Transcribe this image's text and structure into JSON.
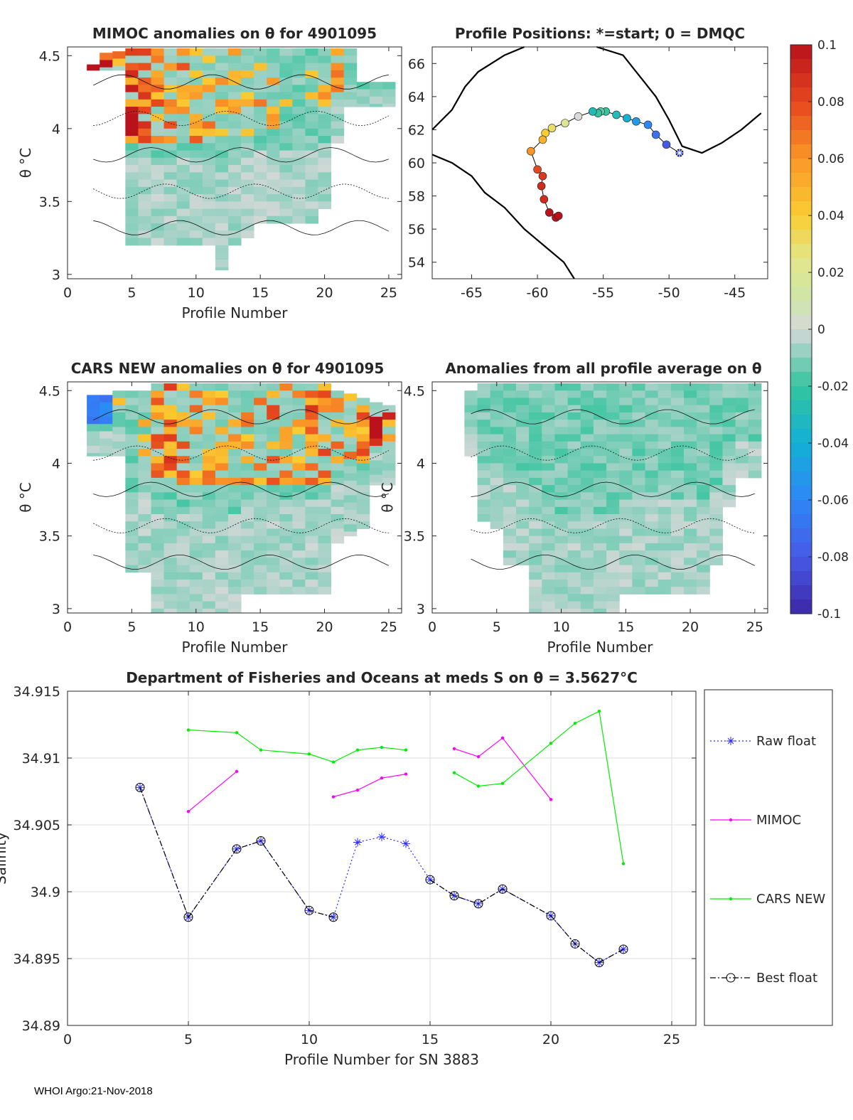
{
  "figure": {
    "footer": "WHOI Argo:21-Nov-2018",
    "theta_label": "θ °C",
    "colors": {
      "text": "#262626",
      "grid": "#dedede",
      "axis": "#262626",
      "heat_bg": "#d9d9d9"
    }
  },
  "chart_data": [
    {
      "id": "mimoc",
      "type": "heatmap",
      "title": "MIMOC anomalies on θ  for 4901095",
      "xlabel": "Profile Number",
      "ylabel": "θ °C",
      "xlim": [
        0,
        26
      ],
      "ylim": [
        2.97,
        4.56
      ],
      "xticks": [
        0,
        5,
        10,
        15,
        20,
        25
      ],
      "yticks": [
        3,
        3.5,
        4,
        4.5
      ],
      "ytick_labels": [
        "3",
        "3.5",
        "4",
        "4.5"
      ],
      "columns": [
        {
          "x": 2,
          "ymin": 4.4,
          "ymax": 4.44,
          "warm": 1.0
        },
        {
          "x": 3,
          "ymin": 4.4,
          "ymax": 4.52,
          "warm": 1.0
        },
        {
          "x": 4,
          "ymin": 4.4,
          "ymax": 4.53,
          "warm": 1.0
        },
        {
          "x": 5,
          "ymin": 3.2,
          "ymax": 4.55,
          "warm": 0.9
        },
        {
          "x": 6,
          "ymin": 3.2,
          "ymax": 4.55,
          "warm": 0.7
        },
        {
          "x": 7,
          "ymin": 3.2,
          "ymax": 4.55,
          "warm": 0.6
        },
        {
          "x": 8,
          "ymin": 3.2,
          "ymax": 4.55,
          "warm": 0.5
        },
        {
          "x": 9,
          "ymin": 3.2,
          "ymax": 4.55,
          "warm": 0.6
        },
        {
          "x": 10,
          "ymin": 3.2,
          "ymax": 4.55,
          "warm": 0.5
        },
        {
          "x": 11,
          "ymin": 3.2,
          "ymax": 4.55,
          "warm": 0.5
        },
        {
          "x": 12,
          "ymin": 3.03,
          "ymax": 4.55,
          "warm": 0.3
        },
        {
          "x": 13,
          "ymin": 3.2,
          "ymax": 4.55,
          "warm": 0.3
        },
        {
          "x": 14,
          "ymin": 3.25,
          "ymax": 4.55,
          "warm": 0.5
        },
        {
          "x": 15,
          "ymin": 3.35,
          "ymax": 4.55,
          "warm": 0.5
        },
        {
          "x": 16,
          "ymin": 3.35,
          "ymax": 4.55,
          "warm": 0.3
        },
        {
          "x": 17,
          "ymin": 3.35,
          "ymax": 4.55,
          "warm": 0.1
        },
        {
          "x": 18,
          "ymin": 3.35,
          "ymax": 4.55,
          "warm": 0.1
        },
        {
          "x": 19,
          "ymin": 3.35,
          "ymax": 4.55,
          "warm": 0.1
        },
        {
          "x": 20,
          "ymin": 3.45,
          "ymax": 4.55,
          "warm": 0.3
        },
        {
          "x": 21,
          "ymin": 3.9,
          "ymax": 4.55,
          "warm": 0.4
        },
        {
          "x": 22,
          "ymin": 4.15,
          "ymax": 4.55,
          "warm": 0.1
        },
        {
          "x": 23,
          "ymin": 4.15,
          "ymax": 4.32,
          "warm": 0.0
        },
        {
          "x": 24,
          "ymin": 4.15,
          "ymax": 4.32,
          "warm": 0.0
        },
        {
          "x": 25,
          "ymin": 4.15,
          "ymax": 4.32,
          "warm": 0.0
        }
      ]
    },
    {
      "id": "positions",
      "type": "scatter",
      "title": "Profile Positions: *=start; 0 = DMQC",
      "xlim": [
        -68,
        -42.5
      ],
      "ylim": [
        53,
        67
      ],
      "xticks": [
        -65,
        -60,
        -55,
        -50,
        -45
      ],
      "yticks": [
        54,
        56,
        58,
        60,
        62,
        64,
        66
      ],
      "lon": [
        -49.2,
        -50.2,
        -51.0,
        -51.6,
        -52.5,
        -53.2,
        -54.0,
        -54.8,
        -55.2,
        -55.4,
        -55.8,
        -56.9,
        -57.9,
        -58.9,
        -59.4,
        -59.6,
        -60.5,
        -60.0,
        -59.6,
        -59.7,
        -59.5,
        -59.1,
        -58.6,
        -58.4
      ],
      "lat": [
        60.6,
        61.1,
        61.7,
        62.3,
        62.5,
        62.7,
        62.9,
        63.1,
        63.1,
        63.0,
        63.1,
        62.8,
        62.4,
        62.1,
        61.8,
        61.4,
        60.7,
        59.6,
        59.2,
        58.6,
        57.8,
        57.0,
        56.7,
        56.8
      ],
      "anomaly_color": [
        -0.085,
        -0.08,
        -0.07,
        -0.06,
        -0.05,
        -0.04,
        -0.03,
        -0.02,
        -0.015,
        -0.02,
        -0.03,
        0.0,
        0.02,
        0.03,
        0.04,
        0.05,
        0.06,
        0.08,
        0.085,
        0.09,
        0.09,
        0.1,
        0.1,
        0.1
      ],
      "start_marker": "*"
    },
    {
      "id": "colorbar",
      "type": "colorbar",
      "ticks": [
        "0.1",
        "0.08",
        "0.06",
        "0.04",
        "0.02",
        "0",
        "-0.02",
        "-0.04",
        "-0.06",
        "-0.08",
        "-0.1"
      ],
      "range": [
        -0.1,
        0.1
      ]
    },
    {
      "id": "cars",
      "type": "heatmap",
      "title": "CARS NEW anomalies on θ for 4901095",
      "xlabel": "Profile Number",
      "ylabel": "θ °C",
      "xlim": [
        0,
        26
      ],
      "ylim": [
        2.97,
        4.56
      ],
      "xticks": [
        0,
        5,
        10,
        15,
        20,
        25
      ],
      "yticks": [
        3,
        3.5,
        4,
        4.5
      ],
      "ytick_labels": [
        "3",
        "3.5",
        "4",
        "4.5"
      ],
      "columns": [
        {
          "x": 2,
          "ymin": 4.05,
          "ymax": 4.47,
          "warm": 0.0
        },
        {
          "x": 3,
          "ymin": 4.05,
          "ymax": 4.47,
          "warm": 0.0
        },
        {
          "x": 4,
          "ymin": 4.05,
          "ymax": 4.5,
          "warm": 0.1
        },
        {
          "x": 5,
          "ymin": 3.25,
          "ymax": 4.5,
          "warm": 0.1
        },
        {
          "x": 6,
          "ymin": 3.25,
          "ymax": 4.5,
          "warm": 0.2
        },
        {
          "x": 7,
          "ymin": 2.97,
          "ymax": 4.55,
          "warm": 0.5
        },
        {
          "x": 8,
          "ymin": 2.97,
          "ymax": 4.55,
          "warm": 0.6
        },
        {
          "x": 9,
          "ymin": 2.97,
          "ymax": 4.55,
          "warm": 0.5
        },
        {
          "x": 10,
          "ymin": 2.97,
          "ymax": 4.55,
          "warm": 0.5
        },
        {
          "x": 11,
          "ymin": 2.97,
          "ymax": 4.55,
          "warm": 0.4
        },
        {
          "x": 12,
          "ymin": 2.97,
          "ymax": 4.55,
          "warm": 0.3
        },
        {
          "x": 13,
          "ymin": 2.97,
          "ymax": 4.55,
          "warm": 0.3
        },
        {
          "x": 14,
          "ymin": 3.1,
          "ymax": 4.55,
          "warm": 0.4
        },
        {
          "x": 15,
          "ymin": 3.1,
          "ymax": 4.55,
          "warm": 0.4
        },
        {
          "x": 16,
          "ymin": 3.1,
          "ymax": 4.55,
          "warm": 0.5
        },
        {
          "x": 17,
          "ymin": 3.1,
          "ymax": 4.55,
          "warm": 0.4
        },
        {
          "x": 18,
          "ymin": 3.1,
          "ymax": 4.55,
          "warm": 0.5
        },
        {
          "x": 19,
          "ymin": 3.1,
          "ymax": 4.55,
          "warm": 0.6
        },
        {
          "x": 20,
          "ymin": 3.1,
          "ymax": 4.55,
          "warm": 0.6
        },
        {
          "x": 21,
          "ymin": 3.45,
          "ymax": 4.5,
          "warm": 0.5
        },
        {
          "x": 22,
          "ymin": 3.5,
          "ymax": 4.48,
          "warm": 0.6
        },
        {
          "x": 23,
          "ymin": 3.55,
          "ymax": 4.45,
          "warm": 0.7
        },
        {
          "x": 24,
          "ymin": 3.85,
          "ymax": 4.42,
          "warm": 0.8
        },
        {
          "x": 25,
          "ymin": 3.85,
          "ymax": 4.4,
          "warm": 0.7
        }
      ]
    },
    {
      "id": "allavg",
      "type": "heatmap",
      "title": "Anomalies from all profile average on θ",
      "xlabel": "Profile Number",
      "ylabel": "θ °C",
      "xlim": [
        0,
        26
      ],
      "ylim": [
        2.97,
        4.56
      ],
      "xticks": [
        0,
        5,
        10,
        15,
        20,
        25
      ],
      "yticks": [
        3,
        3.5,
        4,
        4.5
      ],
      "ytick_labels": [
        "3",
        "3.5",
        "4",
        "4.5"
      ],
      "columns": [
        {
          "x": 3,
          "ymin": 4.05,
          "ymax": 4.5,
          "warm": 0.0
        },
        {
          "x": 4,
          "ymin": 3.6,
          "ymax": 4.55,
          "warm": 0.05
        },
        {
          "x": 5,
          "ymin": 3.55,
          "ymax": 4.55,
          "warm": 0.0
        },
        {
          "x": 6,
          "ymin": 3.3,
          "ymax": 4.55,
          "warm": 0.0
        },
        {
          "x": 7,
          "ymin": 3.3,
          "ymax": 4.55,
          "warm": 0.0
        },
        {
          "x": 8,
          "ymin": 2.97,
          "ymax": 4.55,
          "warm": 0.0
        },
        {
          "x": 9,
          "ymin": 2.97,
          "ymax": 4.55,
          "warm": 0.0
        },
        {
          "x": 10,
          "ymin": 2.97,
          "ymax": 4.55,
          "warm": 0.0
        },
        {
          "x": 11,
          "ymin": 2.97,
          "ymax": 4.55,
          "warm": 0.0
        },
        {
          "x": 12,
          "ymin": 2.97,
          "ymax": 4.55,
          "warm": 0.0
        },
        {
          "x": 13,
          "ymin": 2.97,
          "ymax": 4.55,
          "warm": 0.0
        },
        {
          "x": 14,
          "ymin": 2.97,
          "ymax": 4.55,
          "warm": 0.0
        },
        {
          "x": 15,
          "ymin": 3.1,
          "ymax": 4.55,
          "warm": 0.0
        },
        {
          "x": 16,
          "ymin": 3.1,
          "ymax": 4.55,
          "warm": 0.0
        },
        {
          "x": 17,
          "ymin": 3.1,
          "ymax": 4.55,
          "warm": 0.0
        },
        {
          "x": 18,
          "ymin": 3.1,
          "ymax": 4.55,
          "warm": 0.0
        },
        {
          "x": 19,
          "ymin": 3.1,
          "ymax": 4.55,
          "warm": 0.0
        },
        {
          "x": 20,
          "ymin": 3.1,
          "ymax": 4.55,
          "warm": 0.0
        },
        {
          "x": 21,
          "ymin": 3.1,
          "ymax": 4.55,
          "warm": 0.0
        },
        {
          "x": 22,
          "ymin": 3.3,
          "ymax": 4.55,
          "warm": 0.0
        },
        {
          "x": 23,
          "ymin": 3.7,
          "ymax": 4.55,
          "warm": 0.0
        },
        {
          "x": 24,
          "ymin": 3.9,
          "ymax": 4.55,
          "warm": 0.0
        },
        {
          "x": 25,
          "ymin": 3.9,
          "ymax": 4.55,
          "warm": 0.0
        }
      ]
    },
    {
      "id": "salinity",
      "type": "line",
      "title": "Department of Fisheries and Oceans at meds S on θ = 3.5627°C",
      "xlabel": "Profile Number for SN 3883",
      "ylabel": "Salinity",
      "xlim": [
        0,
        26
      ],
      "ylim": [
        34.89,
        34.915
      ],
      "xticks": [
        0,
        5,
        10,
        15,
        20,
        25
      ],
      "yticks": [
        34.89,
        34.895,
        34.9,
        34.905,
        34.91,
        34.915
      ],
      "ytick_labels": [
        "34.89",
        "34.895",
        "34.9",
        "34.905",
        "34.91",
        "34.915"
      ],
      "grid": true,
      "legend_position": "right",
      "series": [
        {
          "name": "Raw float",
          "color": "#2b2bff",
          "style": "dotted",
          "marker": "star",
          "segments": [
            [
              [
                3,
                34.9078
              ],
              [
                5,
                34.8981
              ],
              [
                7,
                34.9032
              ],
              [
                8,
                34.9038
              ],
              [
                10,
                34.8986
              ],
              [
                11,
                34.8981
              ],
              [
                12,
                34.9037
              ],
              [
                13,
                34.9041
              ],
              [
                14,
                34.9036
              ],
              [
                15,
                34.9009
              ],
              [
                16,
                34.8997
              ],
              [
                17,
                34.8991
              ],
              [
                18,
                34.9002
              ],
              [
                20,
                34.8982
              ],
              [
                21,
                34.8961
              ],
              [
                22,
                34.8947
              ],
              [
                23,
                34.8957
              ]
            ]
          ]
        },
        {
          "name": "MIMOC",
          "color": "#ff00ff",
          "style": "solid",
          "marker": "dot",
          "segments": [
            [
              [
                5,
                34.906
              ],
              [
                7,
                34.909
              ]
            ],
            [
              [
                11,
                34.9071
              ],
              [
                12,
                34.9076
              ],
              [
                13,
                34.9085
              ],
              [
                14,
                34.9088
              ]
            ],
            [
              [
                16,
                34.9107
              ],
              [
                17,
                34.9101
              ],
              [
                18,
                34.9115
              ],
              [
                20,
                34.9069
              ]
            ]
          ]
        },
        {
          "name": "CARS NEW",
          "color": "#00ee00",
          "style": "solid",
          "marker": "dot",
          "segments": [
            [
              [
                5,
                34.9121
              ],
              [
                7,
                34.9119
              ],
              [
                8,
                34.9106
              ],
              [
                10,
                34.9103
              ],
              [
                11,
                34.9097
              ],
              [
                12,
                34.9106
              ],
              [
                13,
                34.9108
              ],
              [
                14,
                34.9106
              ]
            ],
            [
              [
                16,
                34.9089
              ],
              [
                17,
                34.9079
              ],
              [
                18,
                34.9081
              ],
              [
                20,
                34.9111
              ],
              [
                21,
                34.9126
              ],
              [
                22,
                34.9135
              ],
              [
                23,
                34.9021
              ]
            ]
          ]
        },
        {
          "name": "Best float",
          "color": "#000000",
          "style": "dashdot",
          "marker": "circle",
          "segments": [
            [
              [
                3,
                34.9078
              ],
              [
                5,
                34.8981
              ],
              [
                7,
                34.9032
              ],
              [
                8,
                34.9038
              ],
              [
                10,
                34.8986
              ],
              [
                11,
                34.8981
              ]
            ],
            [
              [
                15,
                34.9009
              ],
              [
                16,
                34.8997
              ],
              [
                17,
                34.8991
              ],
              [
                18,
                34.9002
              ],
              [
                20,
                34.8982
              ],
              [
                21,
                34.8961
              ],
              [
                22,
                34.8947
              ],
              [
                23,
                34.8957
              ]
            ]
          ],
          "points": [
            [
              3,
              34.9078
            ],
            [
              5,
              34.8981
            ],
            [
              7,
              34.9032
            ],
            [
              8,
              34.9038
            ],
            [
              10,
              34.8986
            ],
            [
              11,
              34.8981
            ],
            [
              15,
              34.9009
            ],
            [
              16,
              34.8997
            ],
            [
              17,
              34.8991
            ],
            [
              18,
              34.9002
            ],
            [
              20,
              34.8982
            ],
            [
              21,
              34.8961
            ],
            [
              22,
              34.8947
            ],
            [
              23,
              34.8957
            ]
          ]
        }
      ]
    }
  ]
}
